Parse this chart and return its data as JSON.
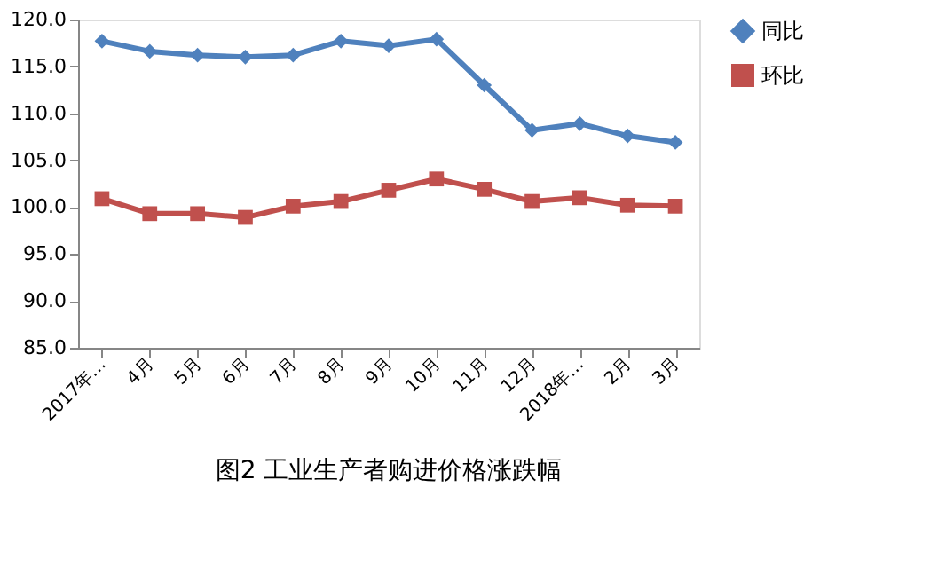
{
  "chart_data": {
    "type": "line",
    "title": "图2 工业生产者购进价格涨跌幅",
    "categories": [
      "2017年…",
      "4月",
      "5月",
      "6月",
      "7月",
      "8月",
      "9月",
      "10月",
      "11月",
      "12月",
      "2018年…",
      "2月",
      "3月"
    ],
    "series": [
      {
        "name": "同比",
        "color": "#4f81bd",
        "marker": "diamond",
        "values": [
          117.7,
          116.6,
          116.2,
          116.0,
          116.2,
          117.7,
          117.2,
          117.9,
          113.0,
          108.2,
          108.9,
          107.6,
          106.9
        ]
      },
      {
        "name": "环比",
        "color": "#c0504d",
        "marker": "square",
        "values": [
          100.9,
          99.3,
          99.3,
          98.9,
          100.1,
          100.6,
          101.8,
          103.0,
          101.9,
          100.6,
          101.0,
          100.2,
          100.1
        ]
      }
    ],
    "ylim": [
      85,
      120
    ],
    "yticks": [
      {
        "value": 85,
        "label": "85.0"
      },
      {
        "value": 90,
        "label": "90.0"
      },
      {
        "value": 95,
        "label": "95.0"
      },
      {
        "value": 100,
        "label": "100.0"
      },
      {
        "value": 105,
        "label": "105.0"
      },
      {
        "value": 110,
        "label": "110.0"
      },
      {
        "value": 115,
        "label": "115.0"
      },
      {
        "value": 120,
        "label": "120.0"
      }
    ],
    "grid": false,
    "legend": "right",
    "line_style": "solid"
  }
}
